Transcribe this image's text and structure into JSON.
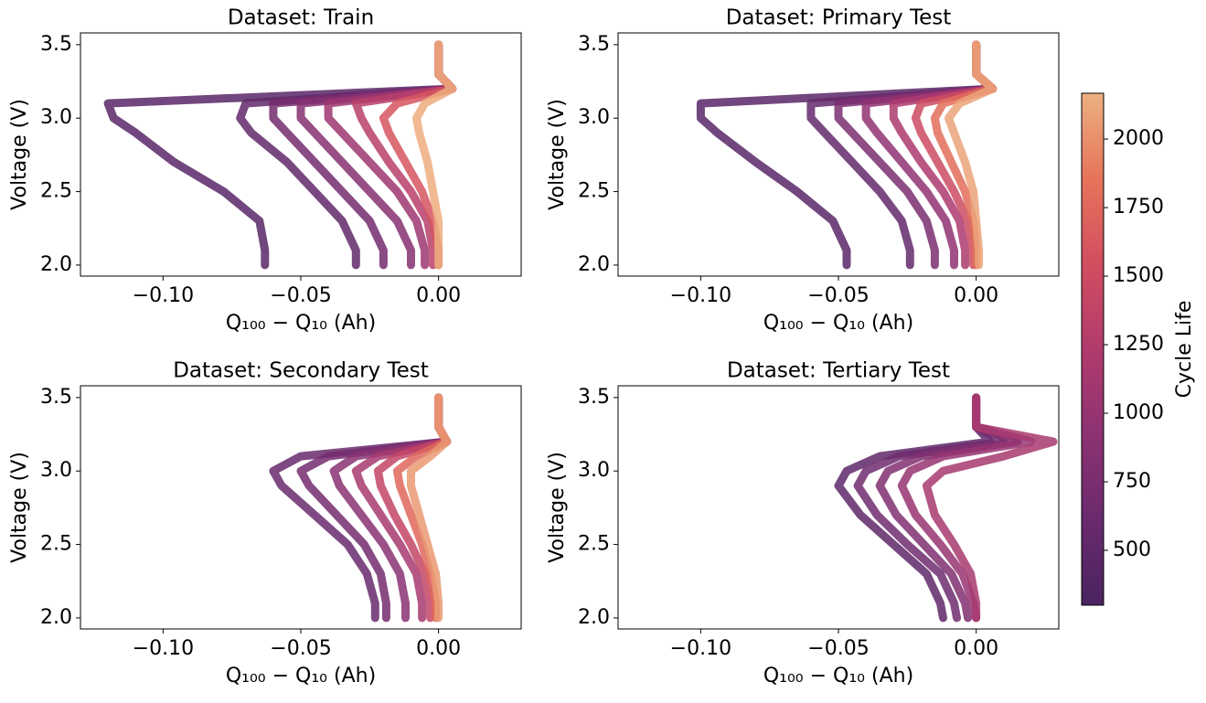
{
  "chart_data": [
    {
      "type": "line",
      "title": "Dataset: Train",
      "xlabel": "Q₁₀₀ − Q₁₀ (Ah)",
      "ylabel": "Voltage (V)",
      "xlim": [
        -0.13,
        0.03
      ],
      "ylim": [
        1.925,
        3.58
      ],
      "xticks": [
        {
          "value": -0.1,
          "label": "−0.10"
        },
        {
          "value": -0.05,
          "label": "−0.05"
        },
        {
          "value": 0,
          "label": "0.00"
        }
      ],
      "yticks": [
        {
          "value": 2,
          "label": "2.0"
        },
        2.5,
        {
          "value": 3,
          "label": "3.0"
        },
        3.5
      ],
      "y": [
        3.5,
        3.3,
        3.2,
        3.1,
        3.0,
        2.9,
        2.7,
        2.5,
        2.3,
        2.1,
        2.0
      ],
      "series": [
        {
          "cycle_life": 450,
          "x": [
            0,
            0,
            0.005,
            -0.12,
            -0.118,
            -0.11,
            -0.096,
            -0.078,
            -0.065,
            -0.063,
            -0.063
          ]
        },
        {
          "cycle_life": 520,
          "x": [
            0,
            0,
            0.005,
            -0.07,
            -0.072,
            -0.068,
            -0.055,
            -0.045,
            -0.035,
            -0.03,
            -0.03
          ]
        },
        {
          "cycle_life": 700,
          "x": [
            0,
            0,
            0.005,
            -0.06,
            -0.06,
            -0.055,
            -0.045,
            -0.035,
            -0.025,
            -0.02,
            -0.02
          ]
        },
        {
          "cycle_life": 850,
          "x": [
            0,
            0,
            0.005,
            -0.05,
            -0.05,
            -0.045,
            -0.035,
            -0.025,
            -0.015,
            -0.01,
            -0.01
          ]
        },
        {
          "cycle_life": 1050,
          "x": [
            0,
            0,
            0.005,
            -0.04,
            -0.04,
            -0.035,
            -0.025,
            -0.015,
            -0.008,
            -0.005,
            -0.005
          ]
        },
        {
          "cycle_life": 1300,
          "x": [
            0,
            0,
            0.005,
            -0.03,
            -0.028,
            -0.025,
            -0.018,
            -0.01,
            -0.004,
            -0.002,
            -0.002
          ]
        },
        {
          "cycle_life": 1600,
          "x": [
            0,
            0,
            0.005,
            -0.015,
            -0.02,
            -0.018,
            -0.012,
            -0.006,
            -0.002,
            0,
            0
          ]
        },
        {
          "cycle_life": 2150,
          "x": [
            0,
            0,
            0.005,
            -0.005,
            -0.008,
            -0.007,
            -0.004,
            -0.002,
            0,
            0,
            0
          ]
        }
      ]
    },
    {
      "type": "line",
      "title": "Dataset: Primary Test",
      "xlabel": "Q₁₀₀ − Q₁₀ (Ah)",
      "ylabel": "Voltage (V)",
      "xlim": [
        -0.13,
        0.03
      ],
      "ylim": [
        1.925,
        3.58
      ],
      "xticks": [
        {
          "value": -0.1,
          "label": "−0.10"
        },
        {
          "value": -0.05,
          "label": "−0.05"
        },
        {
          "value": 0,
          "label": "0.00"
        }
      ],
      "yticks": [
        {
          "value": 2,
          "label": "2.0"
        },
        2.5,
        {
          "value": 3,
          "label": "3.0"
        },
        3.5
      ],
      "y": [
        3.5,
        3.3,
        3.2,
        3.1,
        3.0,
        2.9,
        2.7,
        2.5,
        2.3,
        2.1,
        2.0
      ],
      "series": [
        {
          "cycle_life": 450,
          "x": [
            0,
            0,
            0.006,
            -0.1,
            -0.1,
            -0.094,
            -0.08,
            -0.065,
            -0.052,
            -0.047,
            -0.047
          ]
        },
        {
          "cycle_life": 550,
          "x": [
            0,
            0,
            0.006,
            -0.06,
            -0.06,
            -0.055,
            -0.045,
            -0.035,
            -0.027,
            -0.024,
            -0.024
          ]
        },
        {
          "cycle_life": 750,
          "x": [
            0,
            0,
            0.006,
            -0.05,
            -0.05,
            -0.045,
            -0.035,
            -0.025,
            -0.018,
            -0.015,
            -0.015
          ]
        },
        {
          "cycle_life": 950,
          "x": [
            0,
            0,
            0.006,
            -0.04,
            -0.04,
            -0.036,
            -0.027,
            -0.018,
            -0.011,
            -0.008,
            -0.008
          ]
        },
        {
          "cycle_life": 1200,
          "x": [
            0,
            0,
            0.006,
            -0.03,
            -0.03,
            -0.027,
            -0.02,
            -0.012,
            -0.006,
            -0.004,
            -0.004
          ]
        },
        {
          "cycle_life": 1500,
          "x": [
            0,
            0,
            0.006,
            -0.02,
            -0.022,
            -0.02,
            -0.014,
            -0.008,
            -0.003,
            -0.001,
            -0.001
          ]
        },
        {
          "cycle_life": 1800,
          "x": [
            0,
            0,
            0.006,
            -0.012,
            -0.015,
            -0.014,
            -0.009,
            -0.004,
            -0.001,
            0,
            0
          ]
        },
        {
          "cycle_life": 2100,
          "x": [
            0,
            0,
            0.006,
            -0.006,
            -0.01,
            -0.008,
            -0.004,
            -0.001,
            0,
            0.001,
            0.001
          ]
        }
      ]
    },
    {
      "type": "line",
      "title": "Dataset: Secondary Test",
      "xlabel": "Q₁₀₀ − Q₁₀ (Ah)",
      "ylabel": "Voltage (V)",
      "xlim": [
        -0.13,
        0.03
      ],
      "ylim": [
        1.925,
        3.58
      ],
      "xticks": [
        {
          "value": -0.1,
          "label": "−0.10"
        },
        {
          "value": -0.05,
          "label": "−0.05"
        },
        {
          "value": 0,
          "label": "0.00"
        }
      ],
      "yticks": [
        {
          "value": 2,
          "label": "2.0"
        },
        2.5,
        {
          "value": 3,
          "label": "3.0"
        },
        3.5
      ],
      "y": [
        3.5,
        3.3,
        3.2,
        3.1,
        3.0,
        2.9,
        2.7,
        2.5,
        2.3,
        2.1,
        2.0
      ],
      "series": [
        {
          "cycle_life": 600,
          "x": [
            0,
            0,
            0.003,
            -0.05,
            -0.06,
            -0.057,
            -0.045,
            -0.033,
            -0.026,
            -0.023,
            -0.023
          ]
        },
        {
          "cycle_life": 700,
          "x": [
            0,
            0,
            0.003,
            -0.04,
            -0.05,
            -0.047,
            -0.037,
            -0.027,
            -0.021,
            -0.019,
            -0.019
          ]
        },
        {
          "cycle_life": 900,
          "x": [
            0,
            0,
            0.003,
            -0.03,
            -0.038,
            -0.036,
            -0.028,
            -0.02,
            -0.014,
            -0.012,
            -0.012
          ]
        },
        {
          "cycle_life": 1150,
          "x": [
            0,
            0,
            0.003,
            -0.022,
            -0.03,
            -0.028,
            -0.021,
            -0.014,
            -0.008,
            -0.006,
            -0.006
          ]
        },
        {
          "cycle_life": 1400,
          "x": [
            0,
            0,
            0.003,
            -0.015,
            -0.022,
            -0.021,
            -0.016,
            -0.01,
            -0.005,
            -0.003,
            -0.003
          ]
        },
        {
          "cycle_life": 1750,
          "x": [
            0,
            0,
            0.003,
            -0.008,
            -0.015,
            -0.014,
            -0.01,
            -0.006,
            -0.003,
            -0.001,
            -0.001
          ]
        },
        {
          "cycle_life": 2050,
          "x": [
            0,
            0,
            0.003,
            -0.003,
            -0.01,
            -0.01,
            -0.007,
            -0.004,
            -0.001,
            0,
            0
          ]
        }
      ]
    },
    {
      "type": "line",
      "title": "Dataset: Tertiary Test",
      "xlabel": "Q₁₀₀ − Q₁₀ (Ah)",
      "ylabel": "Voltage (V)",
      "xlim": [
        -0.13,
        0.03
      ],
      "ylim": [
        1.925,
        3.58
      ],
      "xticks": [
        {
          "value": -0.1,
          "label": "−0.10"
        },
        {
          "value": -0.05,
          "label": "−0.05"
        },
        {
          "value": 0,
          "label": "0.00"
        }
      ],
      "yticks": [
        {
          "value": 2,
          "label": "2.0"
        },
        2.5,
        {
          "value": 3,
          "label": "3.0"
        },
        3.5
      ],
      "y": [
        3.5,
        3.3,
        3.2,
        3.1,
        3.0,
        2.9,
        2.7,
        2.5,
        2.3,
        2.1,
        2.0
      ],
      "series": [
        {
          "cycle_life": 500,
          "x": [
            0,
            0,
            0.005,
            -0.035,
            -0.047,
            -0.05,
            -0.042,
            -0.03,
            -0.018,
            -0.013,
            -0.012
          ]
        },
        {
          "cycle_life": 650,
          "x": [
            0,
            0,
            0.01,
            -0.028,
            -0.04,
            -0.043,
            -0.036,
            -0.025,
            -0.013,
            -0.008,
            -0.007
          ]
        },
        {
          "cycle_life": 800,
          "x": [
            0,
            0,
            0.015,
            -0.02,
            -0.032,
            -0.035,
            -0.029,
            -0.019,
            -0.009,
            -0.004,
            -0.003
          ]
        },
        {
          "cycle_life": 1000,
          "x": [
            0,
            0,
            0.02,
            -0.012,
            -0.024,
            -0.027,
            -0.022,
            -0.013,
            -0.005,
            -0.001,
            0
          ]
        },
        {
          "cycle_life": 1150,
          "x": [
            0,
            0,
            0.028,
            0.01,
            -0.012,
            -0.018,
            -0.015,
            -0.008,
            -0.002,
            0,
            0
          ]
        }
      ]
    }
  ],
  "colorbar": {
    "label": "Cycle Life",
    "lim": [
      300,
      2167
    ],
    "ticks": [
      500,
      750,
      1000,
      1250,
      1500,
      1750,
      2000
    ],
    "colors": [
      "#4a2360",
      "#6a2a6e",
      "#8d3272",
      "#b13b6d",
      "#d24e60",
      "#e6745a",
      "#edb081"
    ]
  }
}
